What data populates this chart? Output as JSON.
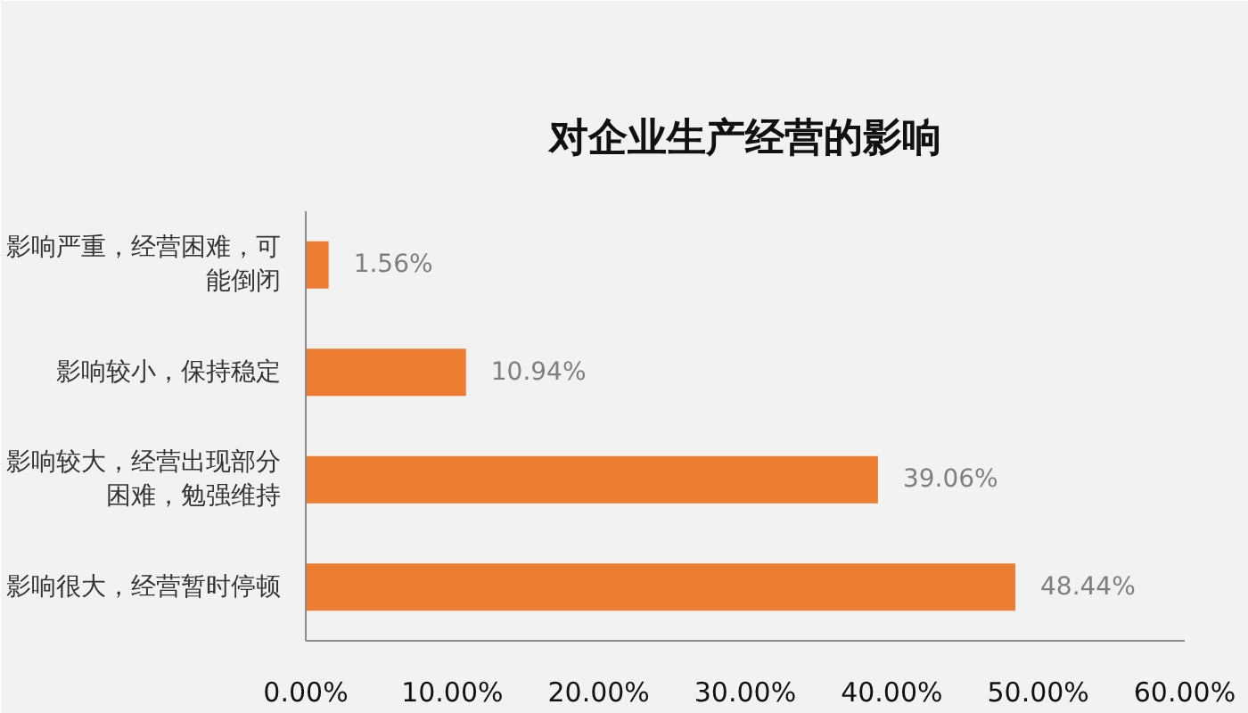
{
  "chart_data": {
    "type": "bar",
    "orientation": "horizontal",
    "title": "对企业生产经营的影响",
    "categories": [
      "影响严重，经营困难，可能倒闭",
      "影响较小，保持稳定",
      "影响较大，经营出现部分困难，勉强维持",
      "影响很大，经营暂时停顿"
    ],
    "values": [
      1.56,
      10.94,
      39.06,
      48.44
    ],
    "value_labels": [
      "1.56%",
      "10.94%",
      "39.06%",
      "48.44%"
    ],
    "color": "#ed7d31",
    "xlim": [
      0,
      60
    ],
    "xticks": [
      {
        "value": 0,
        "label": "0.00%"
      },
      {
        "value": 10,
        "label": "10.00%"
      },
      {
        "value": 20,
        "label": "20.00%"
      },
      {
        "value": 30,
        "label": "30.00%"
      },
      {
        "value": 40,
        "label": "40.00%"
      },
      {
        "value": 50,
        "label": "50.00%"
      },
      {
        "value": 60,
        "label": "60.00%"
      }
    ],
    "grid": false
  }
}
